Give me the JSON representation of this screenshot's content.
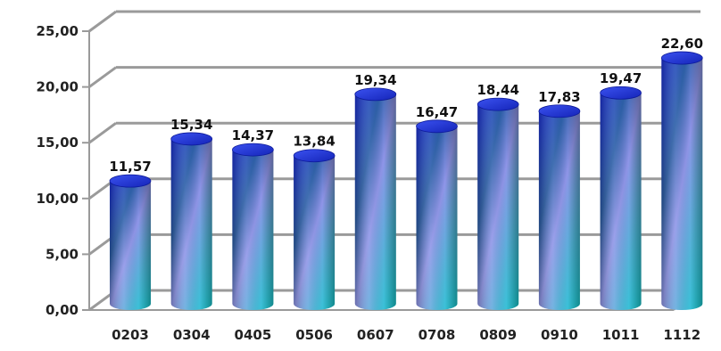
{
  "chart_data": {
    "type": "bar",
    "categories": [
      "0203",
      "0304",
      "0405",
      "0506",
      "0607",
      "0708",
      "0809",
      "0910",
      "1011",
      "1112"
    ],
    "values": [
      11.57,
      15.34,
      14.37,
      13.84,
      19.34,
      16.47,
      18.44,
      17.83,
      19.47,
      22.6
    ],
    "value_labels": [
      "11,57",
      "15,34",
      "14,37",
      "13,84",
      "19,34",
      "16,47",
      "18,44",
      "17,83",
      "19,47",
      "22,60"
    ],
    "ylim": [
      0,
      25
    ],
    "yticks": [
      0,
      5,
      10,
      15,
      20,
      25
    ],
    "ytick_labels": [
      "0,00",
      "5,00",
      "10,00",
      "15,00",
      "20,00",
      "25,00"
    ],
    "grid": true,
    "style": "3d-cylinder",
    "colors": {
      "bar_top": "#1a2fd6",
      "bar_mid": "#2a5ea8",
      "bar_bottom": "#19d3d8",
      "grid": "#9a9a9a"
    }
  }
}
